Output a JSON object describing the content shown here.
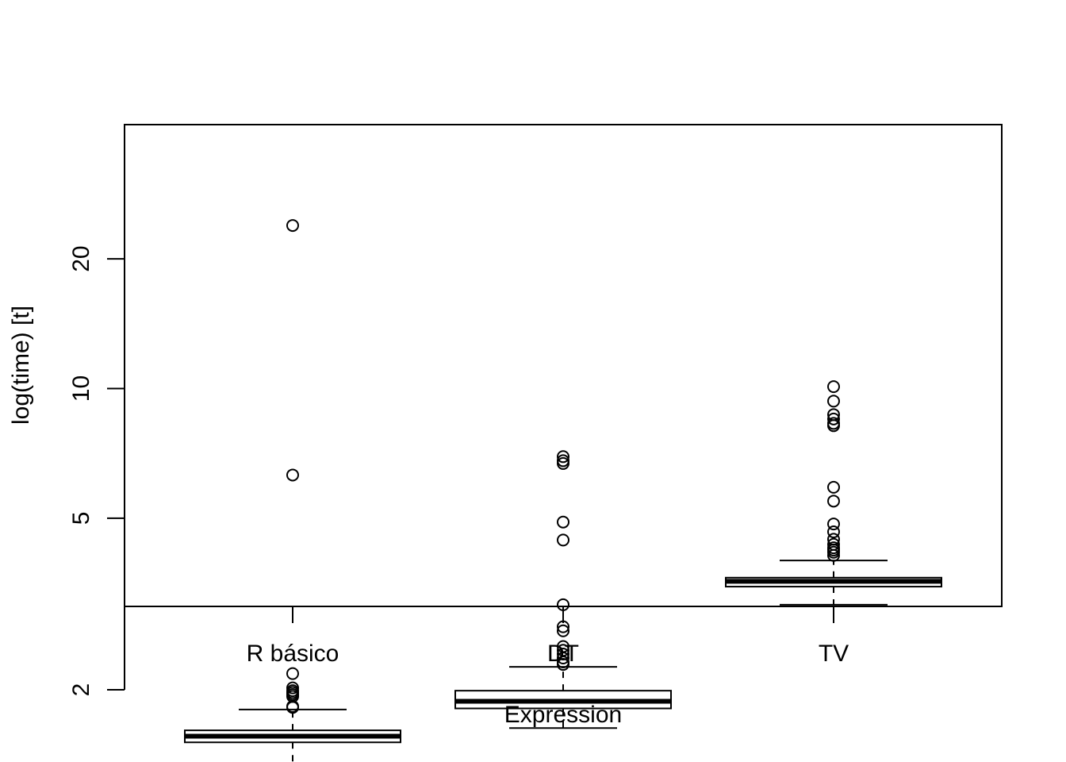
{
  "chart_data": {
    "type": "boxplot",
    "title": "",
    "xlabel": "Expression",
    "ylabel": "log(time) [t]",
    "y_scale": "log",
    "ylim": [
      1.2,
      25
    ],
    "y_ticks": [
      2,
      5,
      10,
      20
    ],
    "grid": false,
    "legend": "none",
    "categories": [
      "R básico",
      "DT",
      "TV"
    ],
    "boxes": [
      {
        "label": "R básico",
        "whisker_low": 1.3,
        "q1": 1.51,
        "median": 1.56,
        "q3": 1.61,
        "whisker_high": 1.8,
        "outliers": [
          1.82,
          1.83,
          1.93,
          1.95,
          1.97,
          1.99,
          2.02,
          2.18,
          6.3,
          23.9
        ]
      },
      {
        "label": "DT",
        "whisker_low": 1.63,
        "q1": 1.81,
        "median": 1.88,
        "q3": 1.99,
        "whisker_high": 2.26,
        "outliers": [
          2.29,
          2.32,
          2.37,
          2.42,
          2.47,
          2.52,
          2.74,
          2.8,
          3.15,
          4.45,
          4.9,
          6.7,
          6.8,
          6.95
        ]
      },
      {
        "label": "TV",
        "whisker_low": 3.15,
        "q1": 3.47,
        "median": 3.57,
        "q3": 3.64,
        "whisker_high": 3.99,
        "outliers": [
          4.1,
          4.17,
          4.22,
          4.27,
          4.35,
          4.47,
          4.65,
          4.85,
          5.48,
          5.9,
          8.2,
          8.3,
          8.5,
          8.7,
          9.35,
          10.1
        ]
      }
    ]
  },
  "labels": {
    "xlabel": "Expression",
    "ylabel": "log(time) [t]",
    "categories": [
      "R básico",
      "DT",
      "TV"
    ],
    "y_ticks": [
      "2",
      "5",
      "10",
      "20"
    ]
  }
}
